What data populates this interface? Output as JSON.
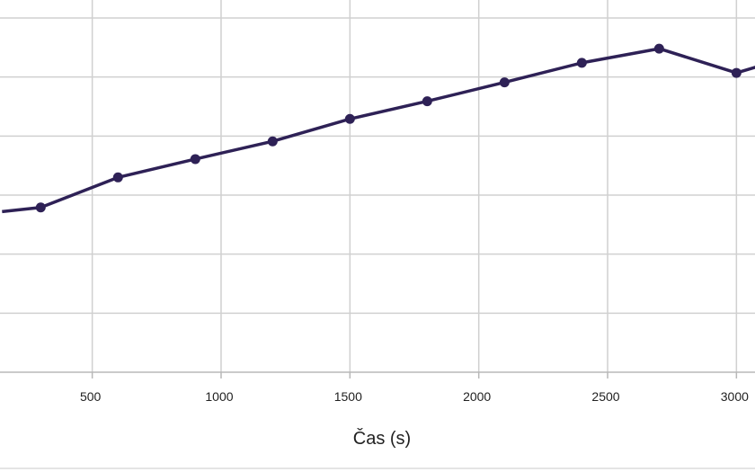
{
  "chart_data": {
    "type": "line",
    "title": "",
    "xlabel": "Čas (s)",
    "ylabel": "",
    "x_ticks": [
      500,
      1000,
      1500,
      2000,
      2500,
      3000
    ],
    "x_tick_labels": [
      "500",
      "1000",
      "1500",
      "2000",
      "2500",
      "3000"
    ],
    "xlim": [
      142,
      3072
    ],
    "ylim": [
      0,
      6
    ],
    "y_gridlines": [
      0,
      1,
      2,
      3,
      4,
      5,
      6
    ],
    "grid": true,
    "legend": "none",
    "series": [
      {
        "name": "",
        "color": "#2e2156",
        "x": [
          150,
          300,
          600,
          900,
          1200,
          1500,
          1800,
          2100,
          2400,
          2700,
          3000,
          3100
        ],
        "y": [
          2.72,
          2.79,
          3.3,
          3.61,
          3.91,
          4.29,
          4.59,
          4.91,
          5.24,
          5.48,
          5.07,
          5.2
        ]
      }
    ]
  }
}
